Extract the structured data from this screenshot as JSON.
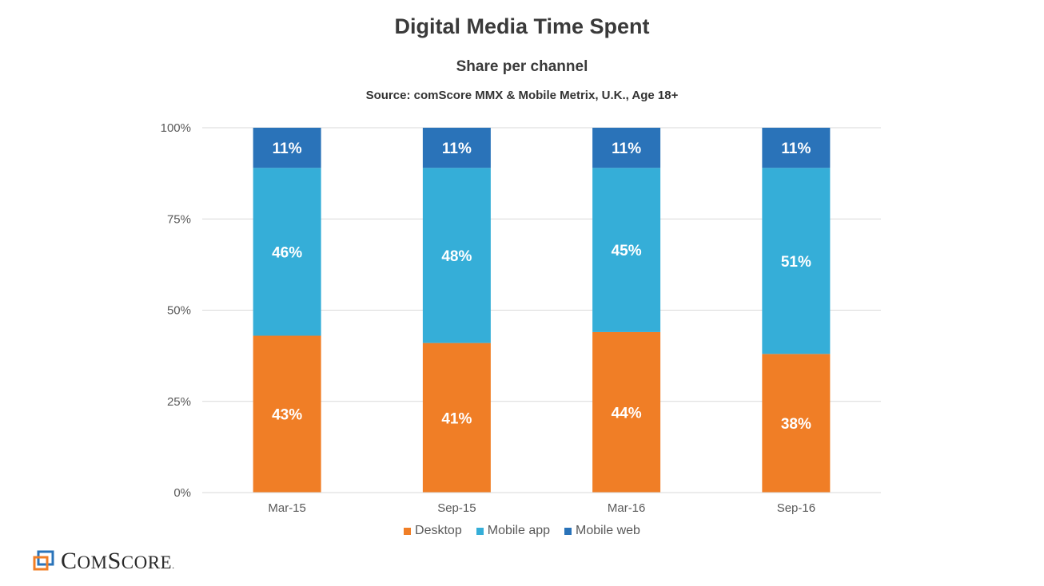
{
  "chart_data": {
    "type": "bar",
    "stacked": true,
    "title": "Digital Media Time Spent",
    "subtitle": "Share per channel",
    "source": "Source: comScore MMX & Mobile Metrix, U.K., Age 18+",
    "categories": [
      "Mar-15",
      "Sep-15",
      "Mar-16",
      "Sep-16"
    ],
    "series": [
      {
        "name": "Desktop",
        "color": "#F07E26",
        "values": [
          43,
          41,
          44,
          38
        ],
        "labels": [
          "43%",
          "41%",
          "44%",
          "38%"
        ]
      },
      {
        "name": "Mobile app",
        "color": "#35AED8",
        "values": [
          46,
          48,
          45,
          51
        ],
        "labels": [
          "46%",
          "48%",
          "45%",
          "51%"
        ]
      },
      {
        "name": "Mobile web",
        "color": "#2A73B9",
        "values": [
          11,
          11,
          11,
          11
        ],
        "labels": [
          "11%",
          "11%",
          "11%",
          "11%"
        ]
      }
    ],
    "ylim": [
      0,
      100
    ],
    "yticks": [
      "0%",
      "25%",
      "50%",
      "75%",
      "100%"
    ],
    "grid": true,
    "legend": "bottom"
  },
  "logo": {
    "name": "comscore-logo",
    "text_big1": "C",
    "text_small1": "OM",
    "text_big2": "S",
    "text_small2": "CORE",
    "mark": "."
  }
}
